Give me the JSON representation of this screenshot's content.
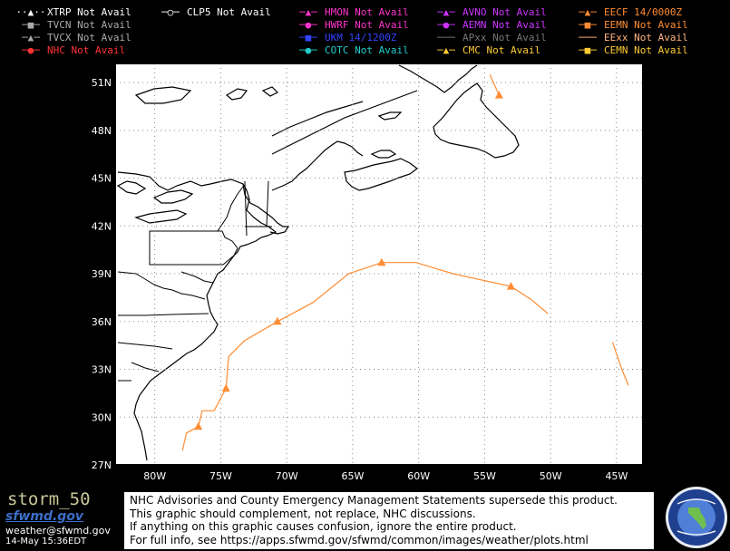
{
  "legend": [
    {
      "label": "XTRP",
      "status": "Not Avail",
      "color": "#ffffff",
      "marker": "dotted-triangle-icon"
    },
    {
      "label": "CLP5",
      "status": "Not Avail",
      "color": "#ffffff",
      "marker": "circle-line-icon"
    },
    {
      "label": "HMON",
      "status": "Not Avail",
      "color": "#ff33cc",
      "marker": "triangle-icon"
    },
    {
      "label": "AVNO",
      "status": "Not Avail",
      "color": "#cc33ff",
      "marker": "triangle-icon"
    },
    {
      "label": "EECF",
      "status": "14/0000Z",
      "color": "#ff8c33",
      "marker": "triangle-icon"
    },
    {
      "label": "TVCN",
      "status": "Not Avail",
      "color": "#aaaaaa",
      "marker": "square-icon"
    },
    {
      "label": "HWRF",
      "status": "Not Avail",
      "color": "#ff33cc",
      "marker": "circle-icon"
    },
    {
      "label": "AEMN",
      "status": "Not Avail",
      "color": "#cc33ff",
      "marker": "circle-icon"
    },
    {
      "label": "EEMN",
      "status": "Not Avail",
      "color": "#ff8c33",
      "marker": "square-icon"
    },
    {
      "label": "TVCX",
      "status": "Not Avail",
      "color": "#aaaaaa",
      "marker": "triangle-icon"
    },
    {
      "label": "UKM",
      "status": "14/1200Z",
      "color": "#3344ff",
      "marker": "square-icon"
    },
    {
      "label": "APxx",
      "status": "Not Avail",
      "color": "#777777",
      "marker": "line-icon"
    },
    {
      "label": "EExx",
      "status": "Not Avail",
      "color": "#ffb380",
      "marker": "line-icon"
    },
    {
      "label": "NHC",
      "status": "Not Avail",
      "color": "#ff3333",
      "marker": "circle-icon"
    },
    {
      "label": "COTC",
      "status": "Not Avail",
      "color": "#22cccc",
      "marker": "circle-icon"
    },
    {
      "label": "CMC",
      "status": "Not Avail",
      "color": "#ffcc33",
      "marker": "triangle-icon"
    },
    {
      "label": "CEMN",
      "status": "Not Avail",
      "color": "#ffcc33",
      "marker": "square-icon"
    }
  ],
  "map": {
    "lon_range": [
      -83,
      -43
    ],
    "lat_range": [
      27,
      52.2
    ],
    "lon_labels": [
      "80W",
      "75W",
      "70W",
      "65W",
      "60W",
      "55W",
      "50W",
      "45W"
    ],
    "lat_labels": [
      "51N",
      "48N",
      "45N",
      "42N",
      "39N",
      "36N",
      "33N",
      "30N",
      "27N"
    ],
    "grid": "dotted",
    "tracks": [
      {
        "model": "EECF",
        "color": "#ff8c33",
        "points": [
          [
            -77.9,
            27.9
          ],
          [
            -77.6,
            29.0
          ],
          [
            -76.7,
            29.4
          ],
          [
            -76.4,
            30.4
          ],
          [
            -75.5,
            30.4
          ],
          [
            -74.6,
            31.8
          ],
          [
            -74.4,
            33.8
          ],
          [
            -73.2,
            34.8
          ],
          [
            -70.7,
            36.0
          ],
          [
            -68.0,
            37.2
          ],
          [
            -65.3,
            39.0
          ],
          [
            -62.8,
            39.7
          ],
          [
            -60.2,
            39.7
          ],
          [
            -57.4,
            39.0
          ],
          [
            -53.0,
            38.2
          ],
          [
            -51.5,
            37.4
          ],
          [
            -50.2,
            36.5
          ]
        ],
        "markers": [
          [
            -76.7,
            29.4
          ],
          [
            -74.6,
            31.8
          ],
          [
            -70.7,
            36.0
          ],
          [
            -62.8,
            39.7
          ],
          [
            -53.0,
            38.2
          ]
        ]
      },
      {
        "model": "EECF",
        "color": "#ff8c33",
        "points": [
          [
            -45.3,
            34.7
          ],
          [
            -44.6,
            33.0
          ],
          [
            -44.1,
            32.0
          ]
        ],
        "markers": []
      },
      {
        "model": "EECF",
        "color": "#ff8c33",
        "points": [
          [
            -54.6,
            51.5
          ],
          [
            -53.9,
            50.2
          ]
        ],
        "markers": [
          [
            -53.9,
            50.2
          ]
        ]
      }
    ]
  },
  "footer": {
    "storm_id": "storm_50",
    "logo_text": "sfwmd.gov",
    "email": "weather@sfwmd.gov",
    "timestamp": "14-May 15:36EDT",
    "disclaimer": [
      "NHC Advisories and County Emergency Management Statements supersede this product.",
      "This graphic should complement, not replace, NHC discussions.",
      "If anything on this graphic causes confusion, ignore the entire product.",
      "For full info, see  https://apps.sfwmd.gov/sfwmd/common/images/weather/plots.html"
    ]
  }
}
